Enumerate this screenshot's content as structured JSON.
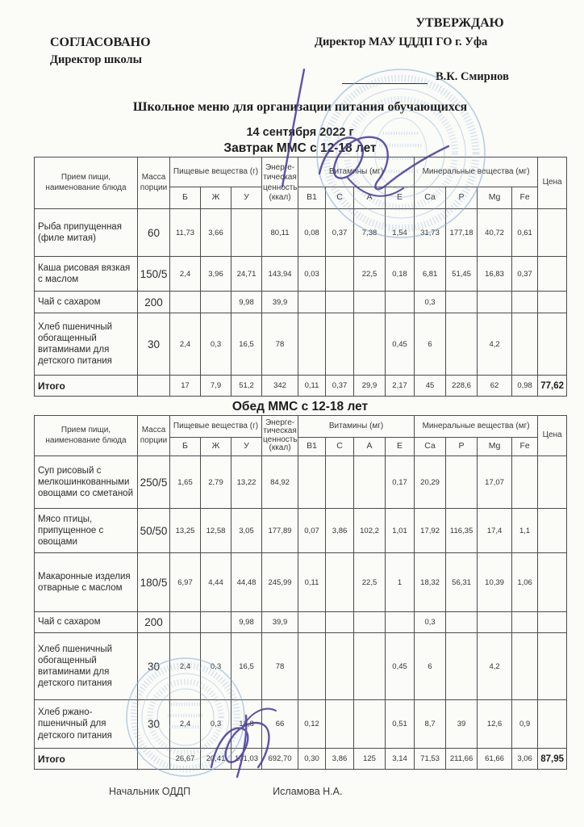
{
  "colors": {
    "paper": "#fbfbf8",
    "ink": "#2f2f2f",
    "table_border": "#4c4c4c",
    "stamp_blue": "#7fa8d4",
    "signature_purple": "#4a3c9c"
  },
  "header": {
    "agreed_title": "СОГЛАСОВАНО",
    "agreed_subtitle": "Директор школы",
    "approved_title": "УТВЕРЖДАЮ",
    "approved_line": "Директор МАУ ЦДДП ГО г. Уфа",
    "approved_name": "В.К. Смирнов"
  },
  "title": "Школьное меню для организации питания обучающихся",
  "date_line": "14 сентября 2022 г",
  "table_header": {
    "dish": "Прием пищи, наименование блюда",
    "mass": "Масса порции",
    "nutrients_group": "Пищевые вещества (г)",
    "nutrients": [
      "Б",
      "Ж",
      "У"
    ],
    "energy": "Энерге-тическая ценность (ккал)",
    "vitamins_group": "Витамины (мг)",
    "vitamins": [
      "В1",
      "С",
      "А",
      "Е"
    ],
    "minerals_group": "Минеральные вещества (мг)",
    "minerals": [
      "Са",
      "Р",
      "Mg",
      "Fe"
    ],
    "price": "Цена"
  },
  "tables": [
    {
      "title": "Завтрак ММС с 12-18 лет",
      "rows": [
        {
          "dish": "Рыба припущенная (филе митая)",
          "mass": "60",
          "values": [
            "11,73",
            "3,66",
            "",
            "80,11",
            "0,08",
            "0,37",
            "7,38",
            "1,54",
            "31,73",
            "177,18",
            "40,72",
            "0,61",
            ""
          ]
        },
        {
          "dish": "Каша рисовая вязкая с маслом",
          "mass": "150/5",
          "values": [
            "2,4",
            "3,96",
            "24,71",
            "143,94",
            "0,03",
            "",
            "22,5",
            "0,18",
            "6,81",
            "51,45",
            "16,83",
            "0,37",
            ""
          ]
        },
        {
          "dish": "Чай с сахаром",
          "mass": "200",
          "values": [
            "",
            "",
            "9,98",
            "39,9",
            "",
            "",
            "",
            "",
            "0,3",
            "",
            "",
            "",
            ""
          ]
        },
        {
          "dish": "Хлеб пшеничный обогащенный витаминами для детского питания",
          "mass": "30",
          "values": [
            "2,4",
            "0,3",
            "16,5",
            "78",
            "",
            "",
            "",
            "0,45",
            "6",
            "",
            "4,2",
            "",
            ""
          ]
        }
      ],
      "total_label": "Итого",
      "total_values": [
        "17",
        "7,9",
        "51,2",
        "342",
        "0,11",
        "0,37",
        "29,9",
        "2,17",
        "45",
        "228,6",
        "62",
        "0,98",
        "77,62"
      ]
    },
    {
      "title": "Обед ММС с 12-18 лет",
      "rows": [
        {
          "dish": "Суп рисовый с мелкошинкованными овощами со сметаной",
          "mass": "250/5",
          "values": [
            "1,65",
            "2,79",
            "13,22",
            "84,92",
            "",
            "",
            "",
            "0,17",
            "20,29",
            "",
            "17,07",
            "",
            ""
          ]
        },
        {
          "dish": "Мясо птицы, припущенное с овощами",
          "mass": "50/50",
          "values": [
            "13,25",
            "12,58",
            "3,05",
            "177,89",
            "0,07",
            "3,86",
            "102,2",
            "1,01",
            "17,92",
            "116,35",
            "17,4",
            "1,1",
            ""
          ]
        },
        {
          "dish": "Макаронные изделия отварные с маслом",
          "mass": "180/5",
          "values": [
            "6,97",
            "4,44",
            "44,48",
            "245,99",
            "0,11",
            "",
            "22,5",
            "1",
            "18,32",
            "56,31",
            "10,39",
            "1,06",
            ""
          ]
        },
        {
          "dish": "Чай с сахаром",
          "mass": "200",
          "values": [
            "",
            "",
            "9,98",
            "39,9",
            "",
            "",
            "",
            "",
            "0,3",
            "",
            "",
            "",
            ""
          ]
        },
        {
          "dish": "Хлеб пшеничный обогащенный витаминами для детского питания",
          "mass": "30",
          "values": [
            "2,4",
            "0,3",
            "16,5",
            "78",
            "",
            "",
            "",
            "0,45",
            "6",
            "",
            "4,2",
            "",
            ""
          ]
        },
        {
          "dish": "Хлеб ржано-пшеничный для детского питания",
          "mass": "30",
          "values": [
            "2,4",
            "0,3",
            "13,8",
            "66",
            "0,12",
            "",
            "",
            "0,51",
            "8,7",
            "39",
            "12,6",
            "0,9",
            ""
          ]
        }
      ],
      "total_label": "Итого",
      "total_values": [
        "26,67",
        "20,41",
        "101,03",
        "692,70",
        "0,30",
        "3,86",
        "125",
        "3,14",
        "71,53",
        "211,66",
        "61,66",
        "3,06",
        "87,95"
      ]
    }
  ],
  "footer": {
    "role": "Начальник ОДДП",
    "name": "Исламова Н.А."
  }
}
